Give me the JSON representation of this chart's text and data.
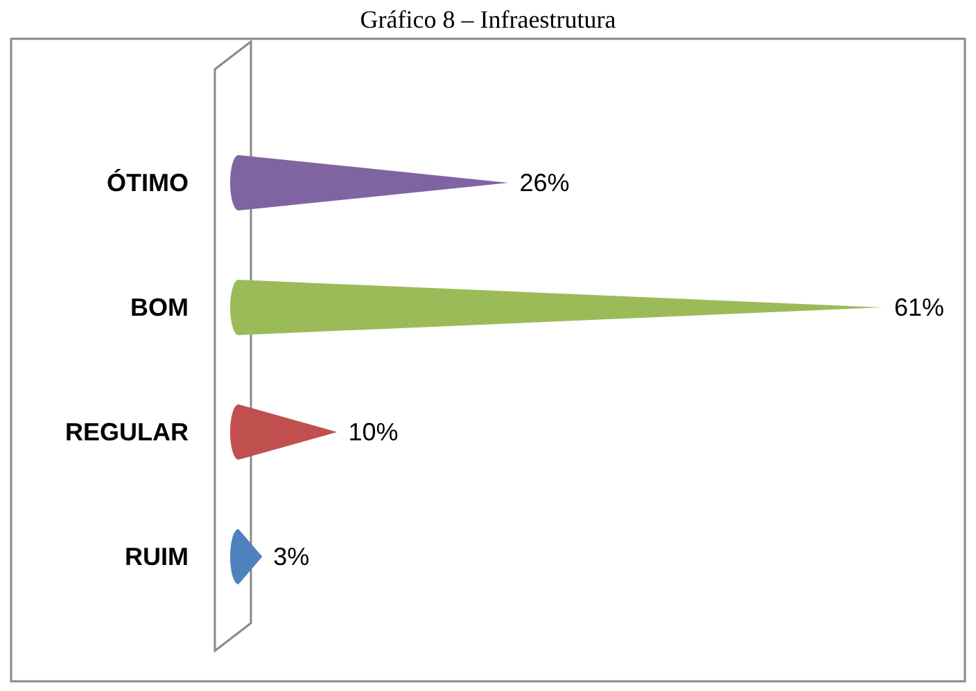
{
  "chart_data": {
    "type": "bar",
    "orientation": "horizontal",
    "title": "Gráfico 8 – Infraestrutura",
    "categories": [
      "ÓTIMO",
      "BOM",
      "REGULAR",
      "RUIM"
    ],
    "values": [
      26,
      61,
      10,
      3
    ],
    "colors": [
      "#8064a2",
      "#9bbb59",
      "#c0504d",
      "#4f81bd"
    ],
    "value_labels": [
      "26%",
      "61%",
      "10%",
      "3%"
    ]
  }
}
